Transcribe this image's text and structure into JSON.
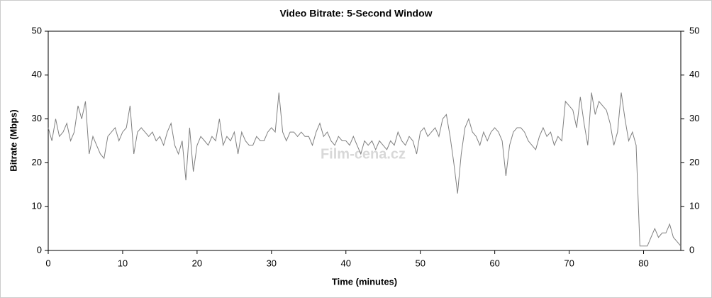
{
  "chart_data": {
    "type": "line",
    "title": "Video Bitrate: 5-Second Window",
    "xlabel": "Time (minutes)",
    "ylabel": "Bitrate (Mbps)",
    "watermark": "Film-cena.cz",
    "color": "#808080",
    "xlim": [
      0,
      85
    ],
    "xticks": [
      0,
      10,
      20,
      30,
      40,
      50,
      60,
      70,
      80
    ],
    "ylim": [
      0,
      50
    ],
    "yticks": [
      0,
      10,
      20,
      30,
      40,
      50
    ],
    "y2lim": [
      0,
      50
    ],
    "y2ticks": [
      0,
      10,
      20,
      30,
      40,
      50
    ],
    "x": [
      0,
      0.5,
      1,
      1.5,
      2,
      2.5,
      3,
      3.5,
      4,
      4.5,
      5,
      5.5,
      6,
      6.5,
      7,
      7.5,
      8,
      8.5,
      9,
      9.5,
      10,
      10.5,
      11,
      11.5,
      12,
      12.5,
      13,
      13.5,
      14,
      14.5,
      15,
      15.5,
      16,
      16.5,
      17,
      17.5,
      18,
      18.5,
      19,
      19.5,
      20,
      20.5,
      21,
      21.5,
      22,
      22.5,
      23,
      23.5,
      24,
      24.5,
      25,
      25.5,
      26,
      26.5,
      27,
      27.5,
      28,
      28.5,
      29,
      29.5,
      30,
      30.5,
      31,
      31.5,
      32,
      32.5,
      33,
      33.5,
      34,
      34.5,
      35,
      35.5,
      36,
      36.5,
      37,
      37.5,
      38,
      38.5,
      39,
      39.5,
      40,
      40.5,
      41,
      41.5,
      42,
      42.5,
      43,
      43.5,
      44,
      44.5,
      45,
      45.5,
      46,
      46.5,
      47,
      47.5,
      48,
      48.5,
      49,
      49.5,
      50,
      50.5,
      51,
      51.5,
      52,
      52.5,
      53,
      53.5,
      54,
      54.5,
      55,
      55.5,
      56,
      56.5,
      57,
      57.5,
      58,
      58.5,
      59,
      59.5,
      60,
      60.5,
      61,
      61.5,
      62,
      62.5,
      63,
      63.5,
      64,
      64.5,
      65,
      65.5,
      66,
      66.5,
      67,
      67.5,
      68,
      68.5,
      69,
      69.5,
      70,
      70.5,
      71,
      71.5,
      72,
      72.5,
      73,
      73.5,
      74,
      74.5,
      75,
      75.5,
      76,
      76.5,
      77,
      77.5,
      78,
      78.5,
      79,
      79.5,
      80,
      80.5,
      81,
      81.5,
      82,
      82.5,
      83,
      83.5,
      84,
      84.5,
      85
    ],
    "values": [
      28,
      25,
      30,
      26,
      27,
      29,
      25,
      27,
      33,
      30,
      34,
      22,
      26,
      24,
      22,
      21,
      26,
      27,
      28,
      25,
      27,
      28,
      33,
      22,
      27,
      28,
      27,
      26,
      27,
      25,
      26,
      24,
      27,
      29,
      24,
      22,
      25,
      16,
      28,
      18,
      24,
      26,
      25,
      24,
      26,
      25,
      30,
      24,
      26,
      25,
      27,
      22,
      27,
      25,
      24,
      24,
      26,
      25,
      25,
      27,
      28,
      27,
      36,
      27,
      25,
      27,
      27,
      26,
      27,
      26,
      26,
      24,
      27,
      29,
      26,
      27,
      25,
      24,
      26,
      25,
      25,
      24,
      26,
      24,
      22,
      25,
      24,
      25,
      23,
      25,
      24,
      23,
      25,
      24,
      27,
      25,
      24,
      26,
      25,
      22,
      27,
      28,
      26,
      27,
      28,
      26,
      30,
      31,
      26,
      20,
      13,
      22,
      28,
      30,
      27,
      26,
      24,
      27,
      25,
      27,
      28,
      27,
      25,
      17,
      24,
      27,
      28,
      28,
      27,
      25,
      24,
      23,
      26,
      28,
      26,
      27,
      24,
      26,
      25,
      34,
      33,
      32,
      28,
      35,
      29,
      24,
      36,
      31,
      34,
      33,
      32,
      29,
      24,
      27,
      36,
      30,
      25,
      27,
      24,
      1,
      1,
      1,
      3,
      5,
      3,
      4,
      4,
      6,
      3,
      2,
      1
    ]
  }
}
